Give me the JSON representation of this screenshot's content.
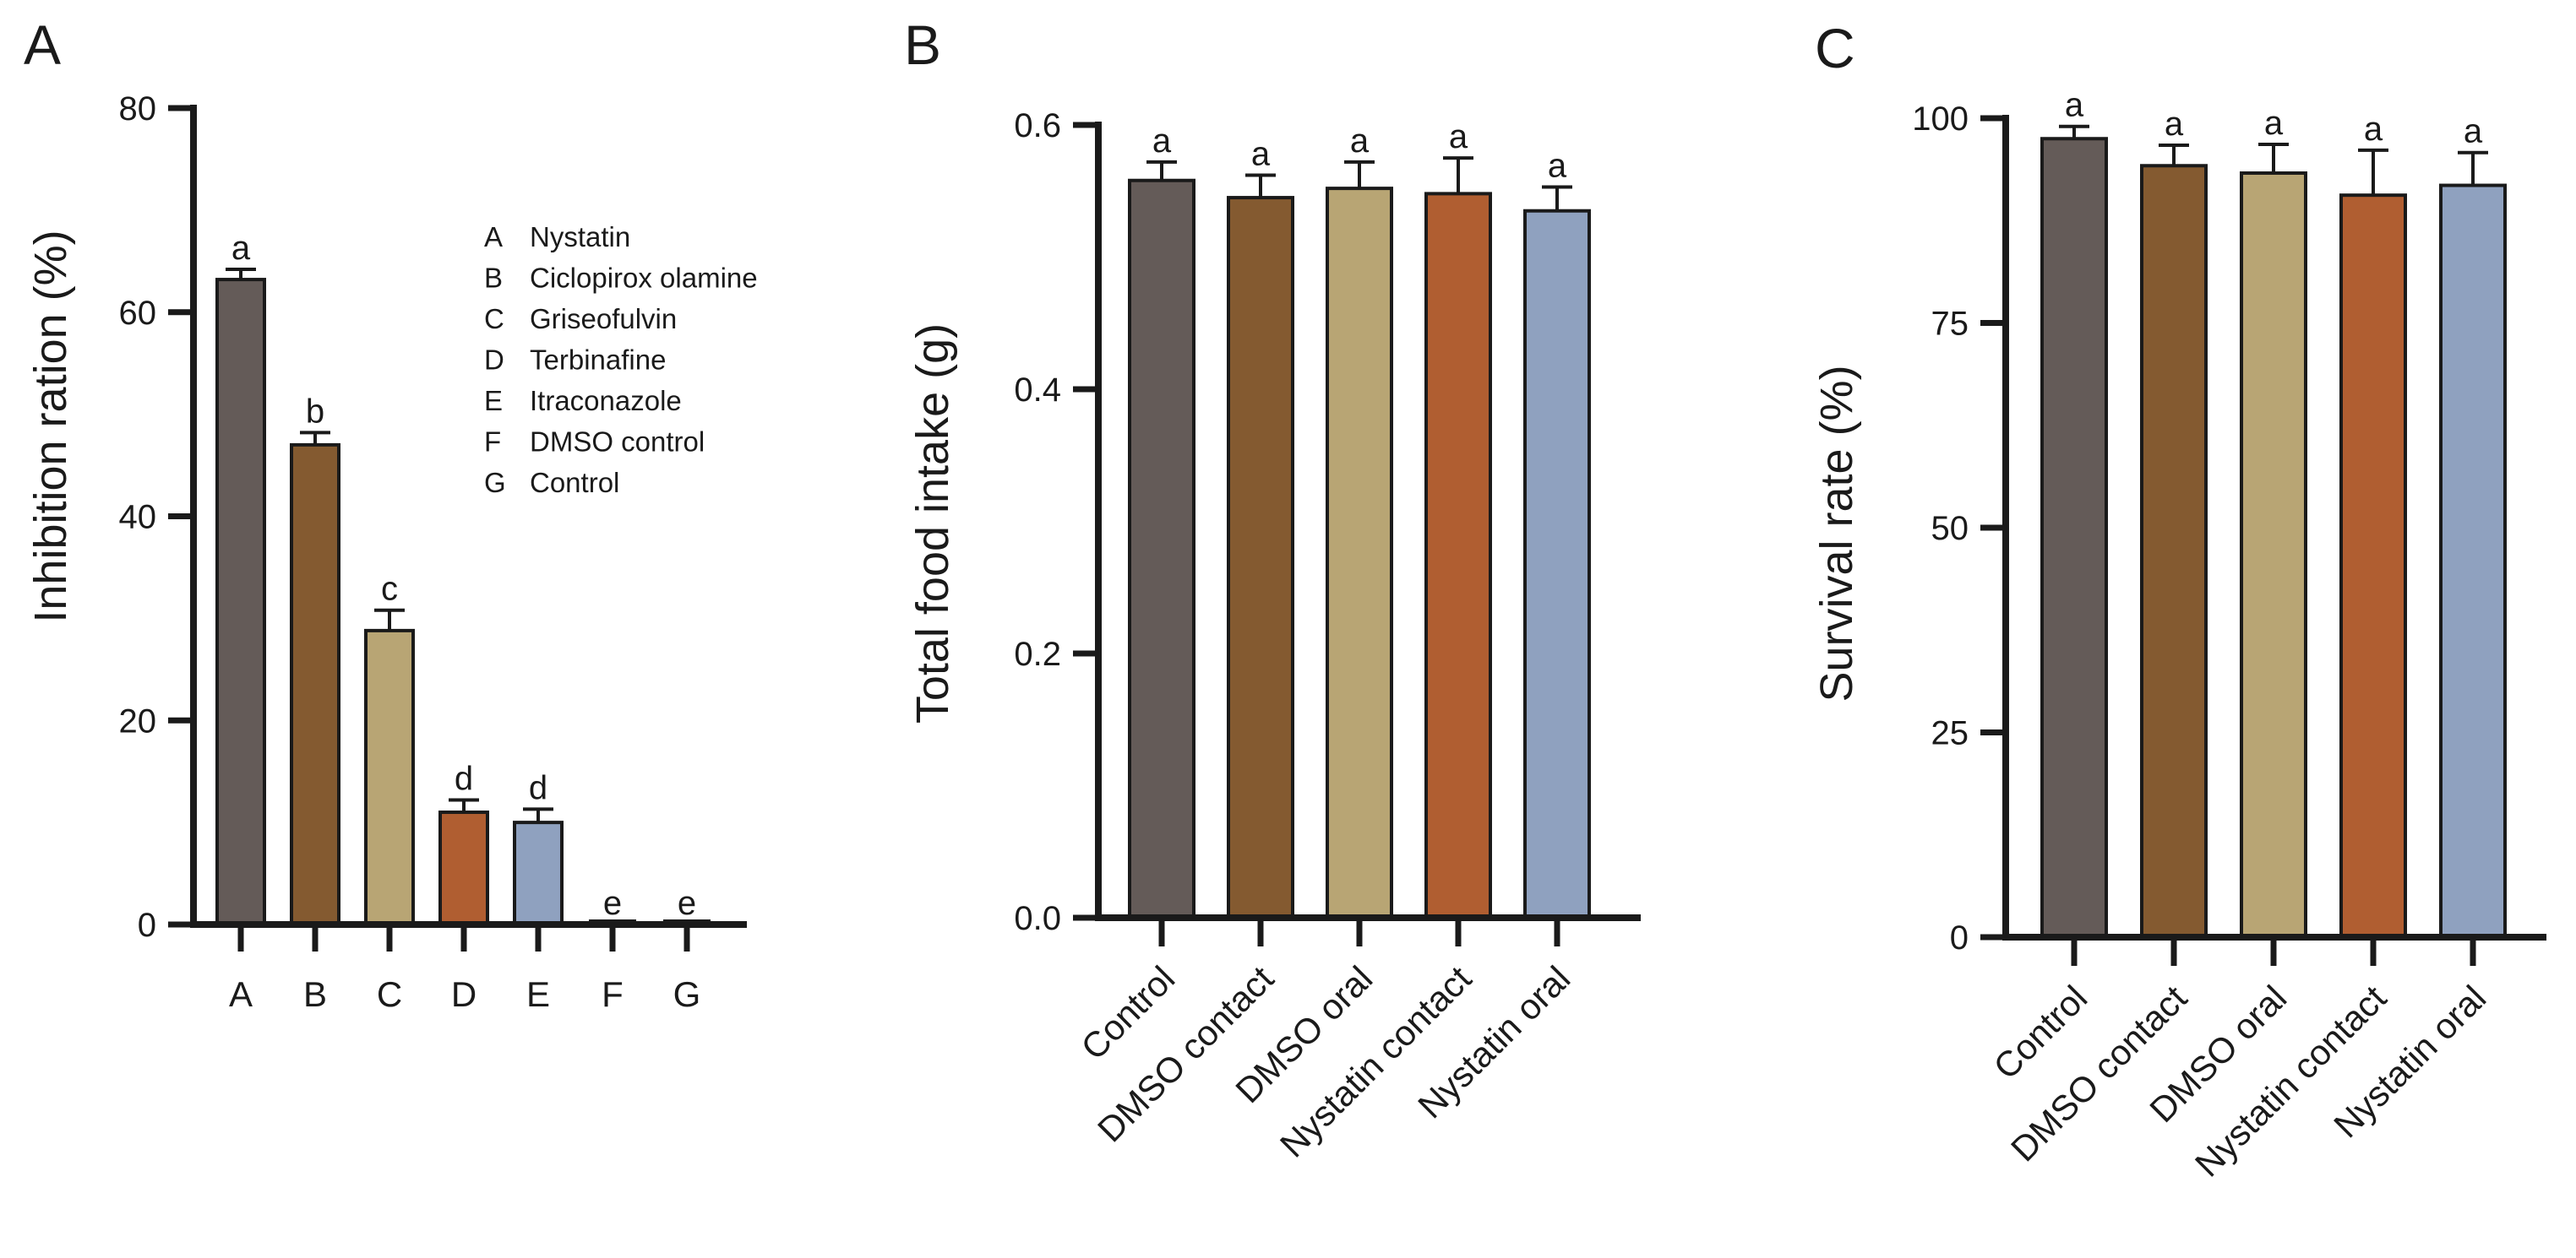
{
  "chart_data": [
    {
      "type": "bar",
      "panel": "A",
      "ylabel": "Inhibition ration (%)",
      "xlabel": "",
      "ylim": [
        0,
        80
      ],
      "yticks": [
        0,
        20,
        40,
        60,
        80
      ],
      "categories": [
        "A",
        "B",
        "C",
        "D",
        "E",
        "F",
        "G"
      ],
      "values": [
        63.2,
        47.0,
        28.8,
        11.0,
        10.0,
        0,
        0
      ],
      "errors": [
        1.0,
        1.2,
        2.0,
        1.2,
        1.3,
        0,
        0
      ],
      "significance": [
        "a",
        "b",
        "c",
        "d",
        "d",
        "e",
        "e"
      ],
      "colors": [
        "#645b58",
        "#845a30",
        "#b8a574",
        "#b05e31",
        "#8fa1bf",
        "#ffffff",
        "#ffffff"
      ],
      "legend": [
        {
          "key": "A",
          "label": "Nystatin"
        },
        {
          "key": "B",
          "label": "Ciclopirox olamine"
        },
        {
          "key": "C",
          "label": "Griseofulvin"
        },
        {
          "key": "D",
          "label": "Terbinafine"
        },
        {
          "key": "E",
          "label": "Itraconazole"
        },
        {
          "key": "F",
          "label": "DMSO control"
        },
        {
          "key": "G",
          "label": "Control"
        }
      ]
    },
    {
      "type": "bar",
      "panel": "B",
      "ylabel": "Total food intake (g)",
      "xlabel": "",
      "ylim": [
        0,
        0.6
      ],
      "yticks": [
        "0.0",
        "0.2",
        "0.4",
        "0.6"
      ],
      "categories": [
        "Control",
        "DMSO contact",
        "DMSO oral",
        "Nystatin contact",
        "Nystatin oral"
      ],
      "values": [
        0.558,
        0.545,
        0.552,
        0.548,
        0.535
      ],
      "errors": [
        0.014,
        0.017,
        0.02,
        0.027,
        0.018
      ],
      "significance": [
        "a",
        "a",
        "a",
        "a",
        "a"
      ],
      "colors": [
        "#645b58",
        "#845a30",
        "#b8a574",
        "#b05e31",
        "#8fa1bf"
      ]
    },
    {
      "type": "bar",
      "panel": "C",
      "ylabel": "Survival rate (%)",
      "xlabel": "",
      "ylim": [
        0,
        100
      ],
      "yticks": [
        "0",
        "25",
        "50",
        "75",
        "100"
      ],
      "categories": [
        "Control",
        "DMSO contact",
        "DMSO oral",
        "Nystatin contact",
        "Nystatin oral"
      ],
      "values": [
        97.5,
        94.2,
        93.3,
        90.6,
        91.8
      ],
      "errors": [
        1.5,
        2.5,
        3.5,
        5.5,
        4.0
      ],
      "significance": [
        "a",
        "a",
        "a",
        "a",
        "a"
      ],
      "colors": [
        "#645b58",
        "#845a30",
        "#b8a574",
        "#b05e31",
        "#8fa1bf"
      ]
    }
  ]
}
